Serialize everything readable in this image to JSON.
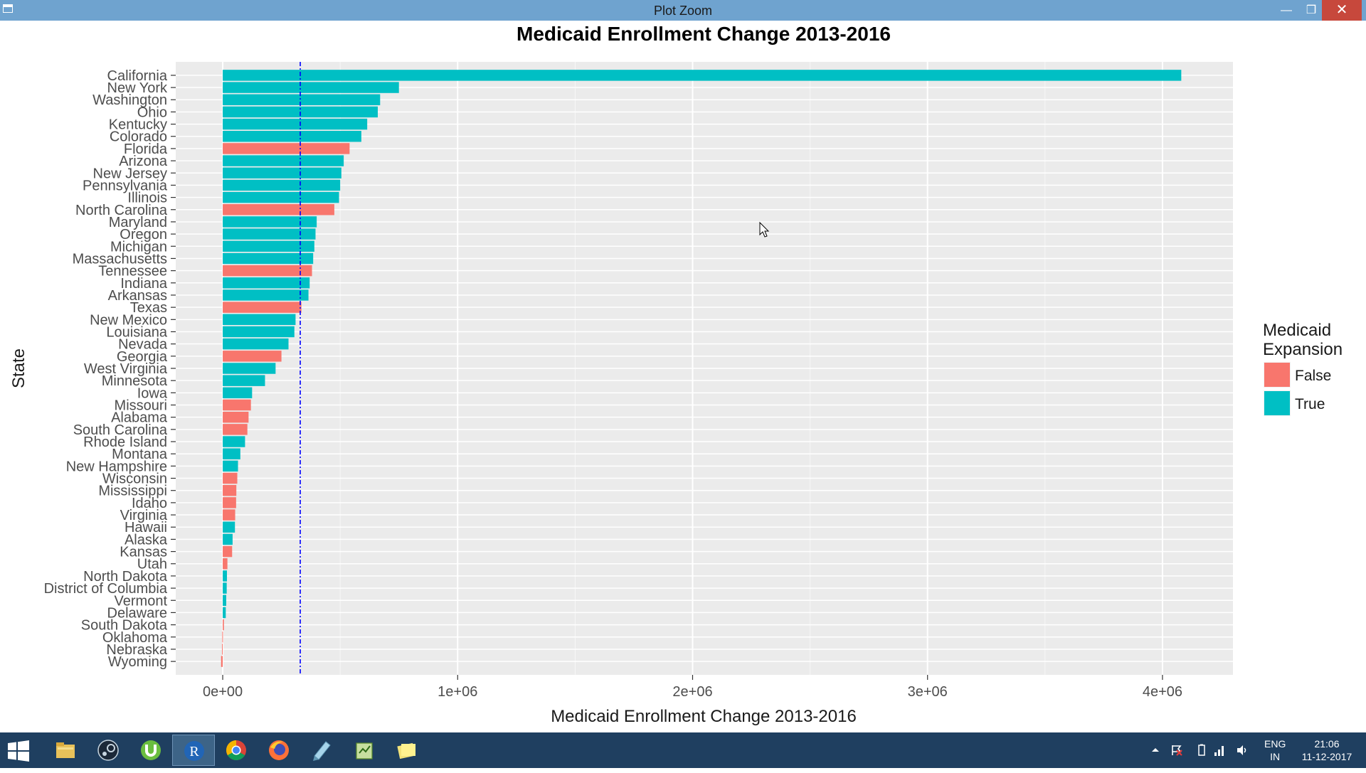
{
  "window": {
    "title": "Plot Zoom"
  },
  "chart_data": {
    "type": "bar",
    "orientation": "horizontal",
    "title": "Medicaid Enrollment Change 2013-2016",
    "xlabel": "Medicaid Enrollment Change 2013-2016",
    "ylabel": "State",
    "xlim": [
      -200000,
      4300000
    ],
    "x_ticks": [
      0,
      1000000,
      2000000,
      3000000,
      4000000
    ],
    "x_tick_labels": [
      "0e+00",
      "1e+06",
      "2e+06",
      "3e+06",
      "4e+06"
    ],
    "reference_line": {
      "value": 330000,
      "color": "#0000ff",
      "style": "dashed"
    },
    "legend": {
      "title_lines": [
        "Medicaid",
        "Expansion"
      ],
      "position": "right",
      "entries": [
        {
          "label": "False",
          "color": "#f8766d"
        },
        {
          "label": "True",
          "color": "#00bfc4"
        }
      ]
    },
    "grid": true,
    "categories": [
      "California",
      "New York",
      "Washington",
      "Ohio",
      "Kentucky",
      "Colorado",
      "Florida",
      "Arizona",
      "New Jersey",
      "Pennsylvania",
      "Illinois",
      "North Carolina",
      "Maryland",
      "Oregon",
      "Michigan",
      "Massachusetts",
      "Tennessee",
      "Indiana",
      "Arkansas",
      "Texas",
      "New Mexico",
      "Louisiana",
      "Nevada",
      "Georgia",
      "West Virginia",
      "Minnesota",
      "Iowa",
      "Missouri",
      "Alabama",
      "South Carolina",
      "Rhode Island",
      "Montana",
      "New Hampshire",
      "Wisconsin",
      "Mississippi",
      "Idaho",
      "Virginia",
      "Hawaii",
      "Alaska",
      "Kansas",
      "Utah",
      "North Dakota",
      "District of Columbia",
      "Vermont",
      "Delaware",
      "South Dakota",
      "Oklahoma",
      "Nebraska",
      "Wyoming"
    ],
    "values": [
      4080000,
      750000,
      670000,
      660000,
      615000,
      590000,
      540000,
      515000,
      505000,
      500000,
      495000,
      475000,
      400000,
      395000,
      390000,
      385000,
      380000,
      370000,
      365000,
      335000,
      310000,
      305000,
      280000,
      250000,
      225000,
      180000,
      125000,
      120000,
      110000,
      105000,
      95000,
      75000,
      65000,
      62000,
      58000,
      57000,
      53000,
      52000,
      42000,
      40000,
      20000,
      18000,
      17000,
      15000,
      13000,
      5000,
      -2000,
      -3000,
      -7000
    ],
    "expansion": [
      true,
      true,
      true,
      true,
      true,
      true,
      false,
      true,
      true,
      true,
      true,
      false,
      true,
      true,
      true,
      true,
      false,
      true,
      true,
      false,
      true,
      true,
      true,
      false,
      true,
      true,
      true,
      false,
      false,
      false,
      true,
      true,
      true,
      false,
      false,
      false,
      false,
      true,
      true,
      false,
      false,
      true,
      true,
      true,
      true,
      false,
      false,
      false,
      false
    ]
  },
  "taskbar": {
    "apps": [
      {
        "name": "File Explorer",
        "icon": "folder-icon",
        "active": false
      },
      {
        "name": "Steam",
        "icon": "steam-icon",
        "active": false
      },
      {
        "name": "uTorrent",
        "icon": "utorrent-icon",
        "active": false
      },
      {
        "name": "R",
        "icon": "r-icon",
        "active": true
      },
      {
        "name": "Chrome",
        "icon": "chrome-icon",
        "active": false
      },
      {
        "name": "Firefox",
        "icon": "firefox-icon",
        "active": false
      },
      {
        "name": "Notepad",
        "icon": "notepad-icon",
        "active": false
      },
      {
        "name": "Editor",
        "icon": "editor-icon",
        "active": false
      },
      {
        "name": "Sticky Notes",
        "icon": "sticky-notes-icon",
        "active": false
      }
    ],
    "language": "ENG",
    "region": "IN",
    "time": "21:06",
    "date": "11-12-2017"
  }
}
